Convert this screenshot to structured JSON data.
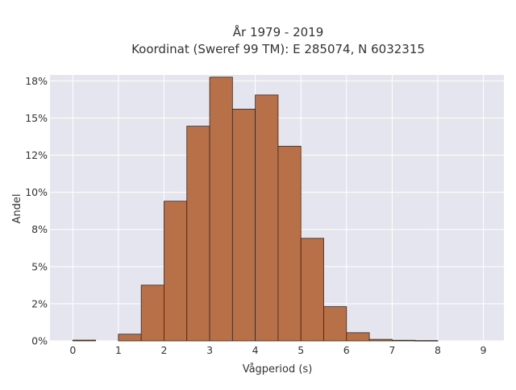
{
  "chart_data": {
    "type": "bar",
    "title_line1": "År 1979 - 2019",
    "title_line2": "Koordinat (Sweref 99 TM): E 285074, N 6032315",
    "xlabel": "Vågperiod (s)",
    "ylabel": "Andel",
    "x_ticks": [
      0,
      1,
      2,
      3,
      4,
      5,
      6,
      7,
      8,
      9
    ],
    "x_tick_labels": [
      "0",
      "1",
      "2",
      "3",
      "4",
      "5",
      "6",
      "7",
      "8",
      "9"
    ],
    "y_ticks": [
      0,
      2.5,
      5,
      7.5,
      10,
      12.5,
      15,
      17.5
    ],
    "y_tick_labels": [
      "0%",
      "2%",
      "5%",
      "8%",
      "10%",
      "12%",
      "15%",
      "18%"
    ],
    "xlim": [
      -0.5,
      9.45
    ],
    "ylim": [
      0,
      17.9
    ],
    "bin_width": 0.5,
    "bins": [
      {
        "x0": 0.0,
        "value": 0.05
      },
      {
        "x0": 0.5,
        "value": 0.0
      },
      {
        "x0": 1.0,
        "value": 0.45
      },
      {
        "x0": 1.5,
        "value": 3.75
      },
      {
        "x0": 2.0,
        "value": 9.4
      },
      {
        "x0": 2.5,
        "value": 14.45
      },
      {
        "x0": 3.0,
        "value": 17.75
      },
      {
        "x0": 3.5,
        "value": 15.6
      },
      {
        "x0": 4.0,
        "value": 16.55
      },
      {
        "x0": 4.5,
        "value": 13.1
      },
      {
        "x0": 5.0,
        "value": 6.9
      },
      {
        "x0": 5.5,
        "value": 2.3
      },
      {
        "x0": 6.0,
        "value": 0.55
      },
      {
        "x0": 6.5,
        "value": 0.1
      },
      {
        "x0": 7.0,
        "value": 0.04
      },
      {
        "x0": 7.5,
        "value": 0.02
      }
    ],
    "grid": true,
    "colors": {
      "bar_fill": "#b87048",
      "bar_stroke": "#3b2418",
      "plot_bg": "#e5e5ef",
      "grid": "#ffffff"
    }
  }
}
